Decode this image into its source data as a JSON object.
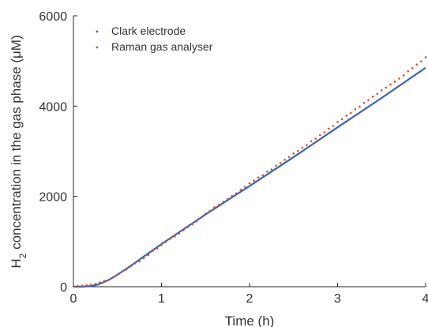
{
  "chart_data": {
    "type": "scatter",
    "xlabel": "Time (h)",
    "ylabel": {
      "main": "H",
      "sub": "2",
      "rest": " concentration in the gas phase (μM)"
    },
    "xlim": [
      0,
      4
    ],
    "ylim": [
      0,
      6000
    ],
    "xticks": [
      0,
      1,
      2,
      3,
      4
    ],
    "yticks": [
      0,
      2000,
      4000,
      6000
    ],
    "grid": false,
    "legend_position": "top-left",
    "series": [
      {
        "name": "Clark electrode",
        "color": "#3a63b5",
        "style": "line",
        "x": [
          0,
          0.1,
          0.2,
          0.25,
          0.3,
          0.35,
          0.4,
          0.45,
          0.5,
          0.55,
          0.6,
          0.7,
          0.8,
          1.0,
          1.5,
          2.0,
          2.5,
          3.0,
          3.5,
          4.0
        ],
        "y": [
          0,
          0,
          15,
          35,
          65,
          105,
          150,
          205,
          265,
          330,
          395,
          530,
          670,
          945,
          1600,
          2230,
          2870,
          3530,
          4180,
          4850
        ]
      },
      {
        "name": "Raman gas analyser",
        "color": "#d9541e",
        "style": "points",
        "x": [
          0.0,
          0.05,
          0.1,
          0.15,
          0.2,
          0.25,
          0.3,
          0.35,
          0.4,
          0.45,
          0.5,
          0.55,
          0.6,
          0.65,
          0.7,
          0.75,
          0.8,
          0.85,
          0.9,
          0.95,
          1.0,
          1.05,
          1.1,
          1.15,
          1.2,
          1.25,
          1.3,
          1.35,
          1.4,
          1.45,
          1.5,
          1.55,
          1.6,
          1.65,
          1.7,
          1.75,
          1.8,
          1.85,
          1.9,
          1.95,
          2.0,
          2.05,
          2.1,
          2.15,
          2.2,
          2.25,
          2.3,
          2.35,
          2.4,
          2.45,
          2.5,
          2.55,
          2.6,
          2.65,
          2.7,
          2.75,
          2.8,
          2.85,
          2.9,
          2.95,
          3.0,
          3.05,
          3.1,
          3.15,
          3.2,
          3.25,
          3.3,
          3.35,
          3.4,
          3.45,
          3.5,
          3.55,
          3.6,
          3.65,
          3.7,
          3.75,
          3.8,
          3.85,
          3.9,
          3.95,
          4.0
        ],
        "y": [
          10,
          15,
          20,
          30,
          45,
          65,
          95,
          130,
          150,
          210,
          270,
          330,
          380,
          450,
          520,
          560,
          630,
          700,
          790,
          850,
          920,
          990,
          1060,
          1110,
          1180,
          1250,
          1320,
          1380,
          1450,
          1530,
          1620,
          1680,
          1760,
          1810,
          1880,
          1940,
          2010,
          2070,
          2150,
          2210,
          2290,
          2350,
          2420,
          2470,
          2550,
          2600,
          2680,
          2740,
          2810,
          2870,
          2950,
          3010,
          3080,
          3140,
          3220,
          3280,
          3360,
          3420,
          3500,
          3560,
          3650,
          3710,
          3790,
          3850,
          3930,
          3990,
          4070,
          4130,
          4210,
          4270,
          4350,
          4410,
          4480,
          4540,
          4610,
          4680,
          4770,
          4840,
          4920,
          4990,
          5080
        ]
      }
    ]
  }
}
